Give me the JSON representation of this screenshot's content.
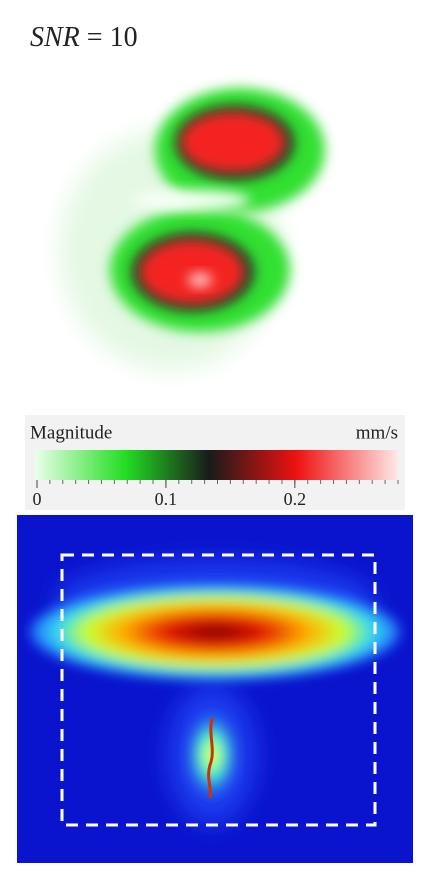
{
  "title": {
    "variable": "SNR",
    "value": "= 10"
  },
  "colorbar": {
    "label": "Magnitude",
    "unit": "mm/s",
    "lim": [
      0,
      0.28
    ],
    "ticks": [
      0,
      0.1,
      0.2
    ]
  }
}
